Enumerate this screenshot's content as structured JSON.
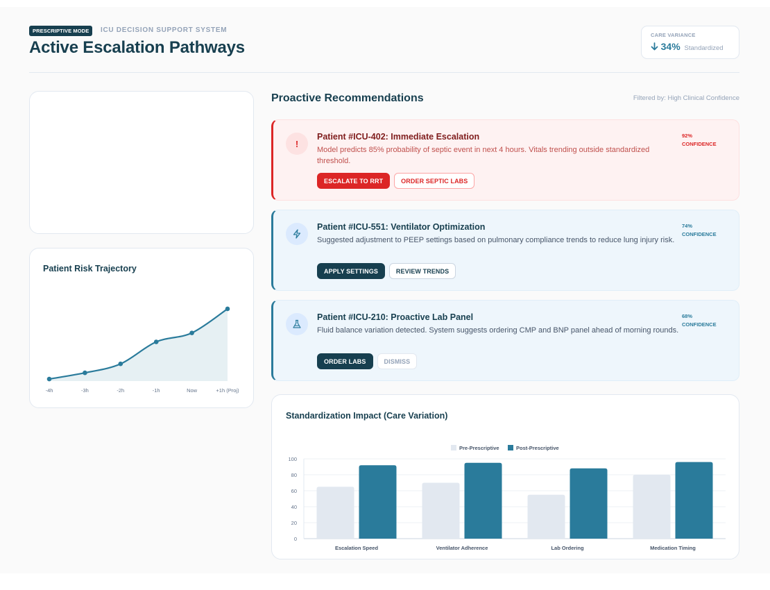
{
  "header": {
    "mode_badge": "PRESCRIPTIVE MODE",
    "system_label": "ICU DECISION SUPPORT SYSTEM",
    "title": "Active Escalation Pathways",
    "variance": {
      "label": "CARE VARIANCE",
      "arrow_icon": "arrow-down-icon",
      "value": "34%",
      "sub": "Standardized"
    }
  },
  "risk_card": {
    "title": "Patient Risk Trajectory"
  },
  "recommendations": {
    "heading": "Proactive Recommendations",
    "filter": "Filtered by: High Clinical Confidence",
    "items": [
      {
        "severity": "critical",
        "icon": "alert-icon",
        "icon_glyph": "!",
        "title": "Patient #ICU-402: Immediate Escalation",
        "description": "Model predicts 85% probability of septic event in next 4 hours. Vitals trending outside standardized threshold.",
        "confidence_value": "92%",
        "confidence_label": "CONFIDENCE",
        "actions": [
          "ESCALATE TO RRT",
          "ORDER SEPTIC LABS"
        ]
      },
      {
        "severity": "info",
        "icon": "lightning-icon",
        "title": "Patient #ICU-551: Ventilator Optimization",
        "description": "Suggested adjustment to PEEP settings based on pulmonary compliance trends to reduce lung injury risk.",
        "confidence_value": "74%",
        "confidence_label": "CONFIDENCE",
        "actions": [
          "APPLY SETTINGS",
          "REVIEW TRENDS"
        ]
      },
      {
        "severity": "info",
        "icon": "flask-icon",
        "title": "Patient #ICU-210: Proactive Lab Panel",
        "description": "Fluid balance variation detected. System suggests ordering CMP and BNP panel ahead of morning rounds.",
        "confidence_value": "68%",
        "confidence_label": "CONFIDENCE",
        "actions": [
          "ORDER LABS",
          "DISMISS"
        ]
      }
    ]
  },
  "impact_card": {
    "title": "Standardization Impact (Care Variation)"
  },
  "colors": {
    "brand_dark": "#173f4f",
    "accent": "#2a7b9b",
    "critical": "#dc2626",
    "pre_series": "#e2e8f0",
    "post_series": "#2a7b9b",
    "risk_fill": "#e6f0f3"
  },
  "chart_data": [
    {
      "type": "line",
      "title": "Patient Risk Trajectory",
      "x": [
        "-4h",
        "-3h",
        "-2h",
        "-1h",
        "Now",
        "+1h (Proj)"
      ],
      "series": [
        {
          "values": [
            3,
            12,
            25,
            57,
            70,
            105
          ]
        }
      ],
      "fill": "area",
      "ylim": [
        0,
        110
      ],
      "grid": false,
      "legend": "none"
    },
    {
      "type": "bar",
      "title": "Standardization Impact (Care Variation)",
      "categories": [
        "Escalation Speed",
        "Ventilator Adherence",
        "Lab Ordering",
        "Medication Timing"
      ],
      "series": [
        {
          "name": "Pre-Prescriptive",
          "values": [
            65,
            70,
            55,
            80
          ]
        },
        {
          "name": "Post-Prescriptive",
          "values": [
            92,
            95,
            88,
            96
          ]
        }
      ],
      "yticks": [
        "0",
        "20",
        "40",
        "60",
        "80",
        "100"
      ],
      "ylim": [
        0,
        100
      ],
      "grid": true,
      "legend": "top"
    }
  ]
}
